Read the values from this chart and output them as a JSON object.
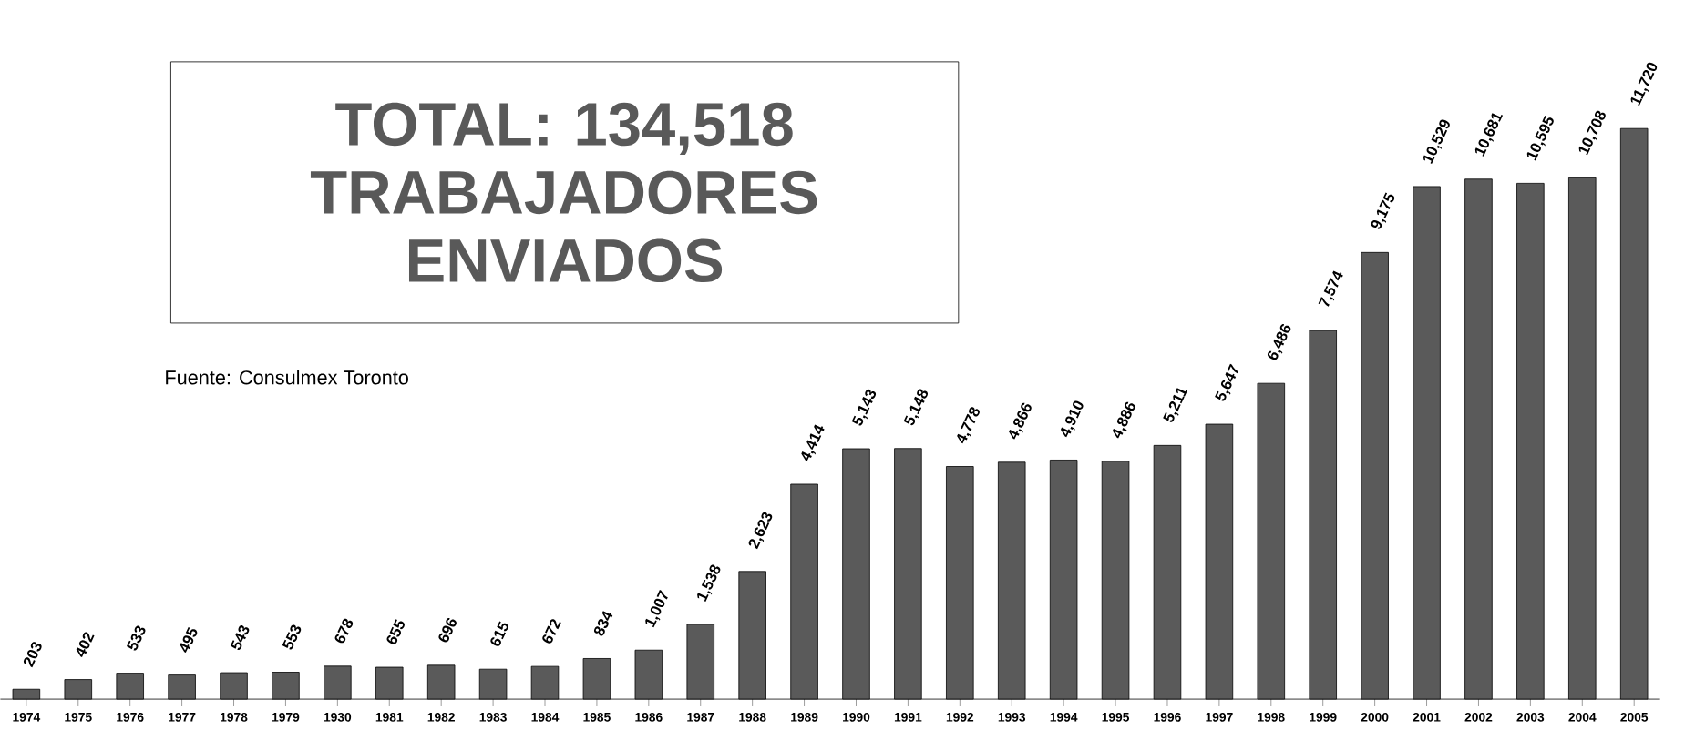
{
  "chart_data": {
    "type": "bar",
    "title": "TOTAL: 134,518 TRABAJADORES ENVIADOS",
    "annotations": [
      "Fuente: Consulmex Toronto"
    ],
    "categories": [
      "1974",
      "1975",
      "1976",
      "1977",
      "1978",
      "1979",
      "1930",
      "1981",
      "1982",
      "1983",
      "1984",
      "1985",
      "1986",
      "1987",
      "1988",
      "1989",
      "1990",
      "1991",
      "1992",
      "1993",
      "1994",
      "1995",
      "1996",
      "1997",
      "1998",
      "1999",
      "2000",
      "2001",
      "2002",
      "2003",
      "2004",
      "2005"
    ],
    "values": [
      203,
      402,
      533,
      495,
      543,
      553,
      678,
      655,
      696,
      615,
      672,
      834,
      1007,
      1538,
      2623,
      4414,
      5143,
      5148,
      4778,
      4866,
      4910,
      4886,
      5211,
      5647,
      6486,
      7574,
      9175,
      10529,
      10681,
      10595,
      10708,
      11720
    ],
    "value_labels": [
      "203",
      "402",
      "533",
      "495",
      "543",
      "553",
      "678",
      "655",
      "696",
      "615",
      "672",
      "834",
      "1,007",
      "1,538",
      "2,623",
      "4,414",
      "5,143",
      "5,148",
      "4,778",
      "4,866",
      "4,910",
      "4,886",
      "5,211",
      "5,647",
      "6,486",
      "7,574",
      "9,175",
      "10,529",
      "10,681",
      "10,595",
      "10,708",
      "11,720"
    ],
    "color": "#5a5a5a"
  }
}
